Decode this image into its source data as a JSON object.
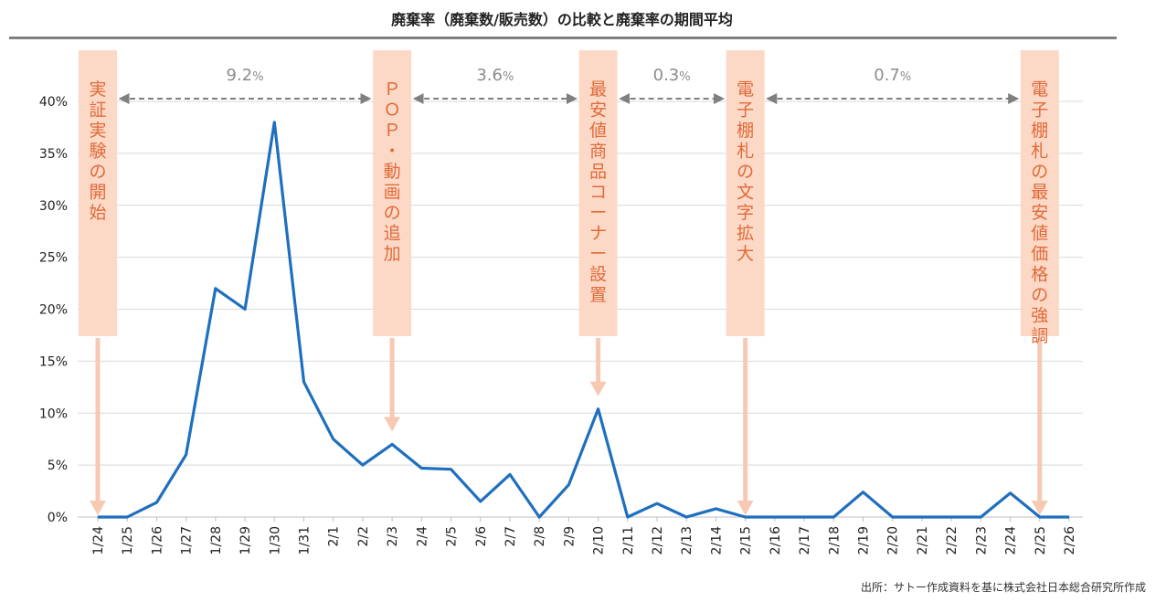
{
  "title": "廃棄率（廃棄数/販売数）の比較と廃棄率の期間平均",
  "source": "出所：サトー作成資料を基に株式会社日本総合研究所作成",
  "colors": {
    "line": "#1f6fbf",
    "annotation_fill": "#fcd9c6",
    "annotation_text": "#e06a3a",
    "arrow": "#f7c9b3",
    "period_arrow": "#7f7f7f",
    "grid": "#d9d9d9",
    "title_rule": "#7f7f7f"
  },
  "chart_data": {
    "type": "line",
    "title": "廃棄率（廃棄数/販売数）の比較と廃棄率の期間平均",
    "xlabel": "",
    "ylabel": "",
    "ylim": [
      0,
      40
    ],
    "yticks": [
      "0%",
      "5%",
      "10%",
      "15%",
      "20%",
      "25%",
      "30%",
      "35%",
      "40%"
    ],
    "grid": true,
    "legend": "none",
    "categories": [
      "1/24",
      "1/25",
      "1/26",
      "1/27",
      "1/28",
      "1/29",
      "1/30",
      "1/31",
      "2/1",
      "2/2",
      "2/3",
      "2/4",
      "2/5",
      "2/6",
      "2/7",
      "2/8",
      "2/9",
      "2/10",
      "2/11",
      "2/12",
      "2/13",
      "2/14",
      "2/15",
      "2/16",
      "2/17",
      "2/18",
      "2/19",
      "2/20",
      "2/21",
      "2/22",
      "2/23",
      "2/24",
      "2/25",
      "2/26"
    ],
    "values": [
      0,
      0,
      1.4,
      6,
      22,
      20,
      38,
      13,
      7.5,
      5,
      7,
      4.7,
      4.6,
      1.5,
      4.1,
      0,
      3.1,
      10.4,
      0,
      1.3,
      0,
      0.8,
      0,
      0,
      0,
      0,
      2.4,
      0,
      0,
      0,
      0,
      2.3,
      0,
      0
    ],
    "events": [
      {
        "text": "実証実験の開始",
        "category": "1/24"
      },
      {
        "text": "ＰＯＰ・動画の追加",
        "category": "2/3"
      },
      {
        "text": "最安値商品コーナー設置",
        "category": "2/10"
      },
      {
        "text": "電子棚札の文字拡大",
        "category": "2/15"
      },
      {
        "text": "電子棚札の最安値価格の強調",
        "category": "2/25"
      }
    ],
    "period_averages": [
      {
        "value": "9.2",
        "unit": "%",
        "from": "1/24",
        "to": "2/3"
      },
      {
        "value": "3.6",
        "unit": "%",
        "from": "2/3",
        "to": "2/10"
      },
      {
        "value": "0.3",
        "unit": "%",
        "from": "2/10",
        "to": "2/15"
      },
      {
        "value": "0.7",
        "unit": "%",
        "from": "2/15",
        "to": "2/25"
      }
    ]
  }
}
